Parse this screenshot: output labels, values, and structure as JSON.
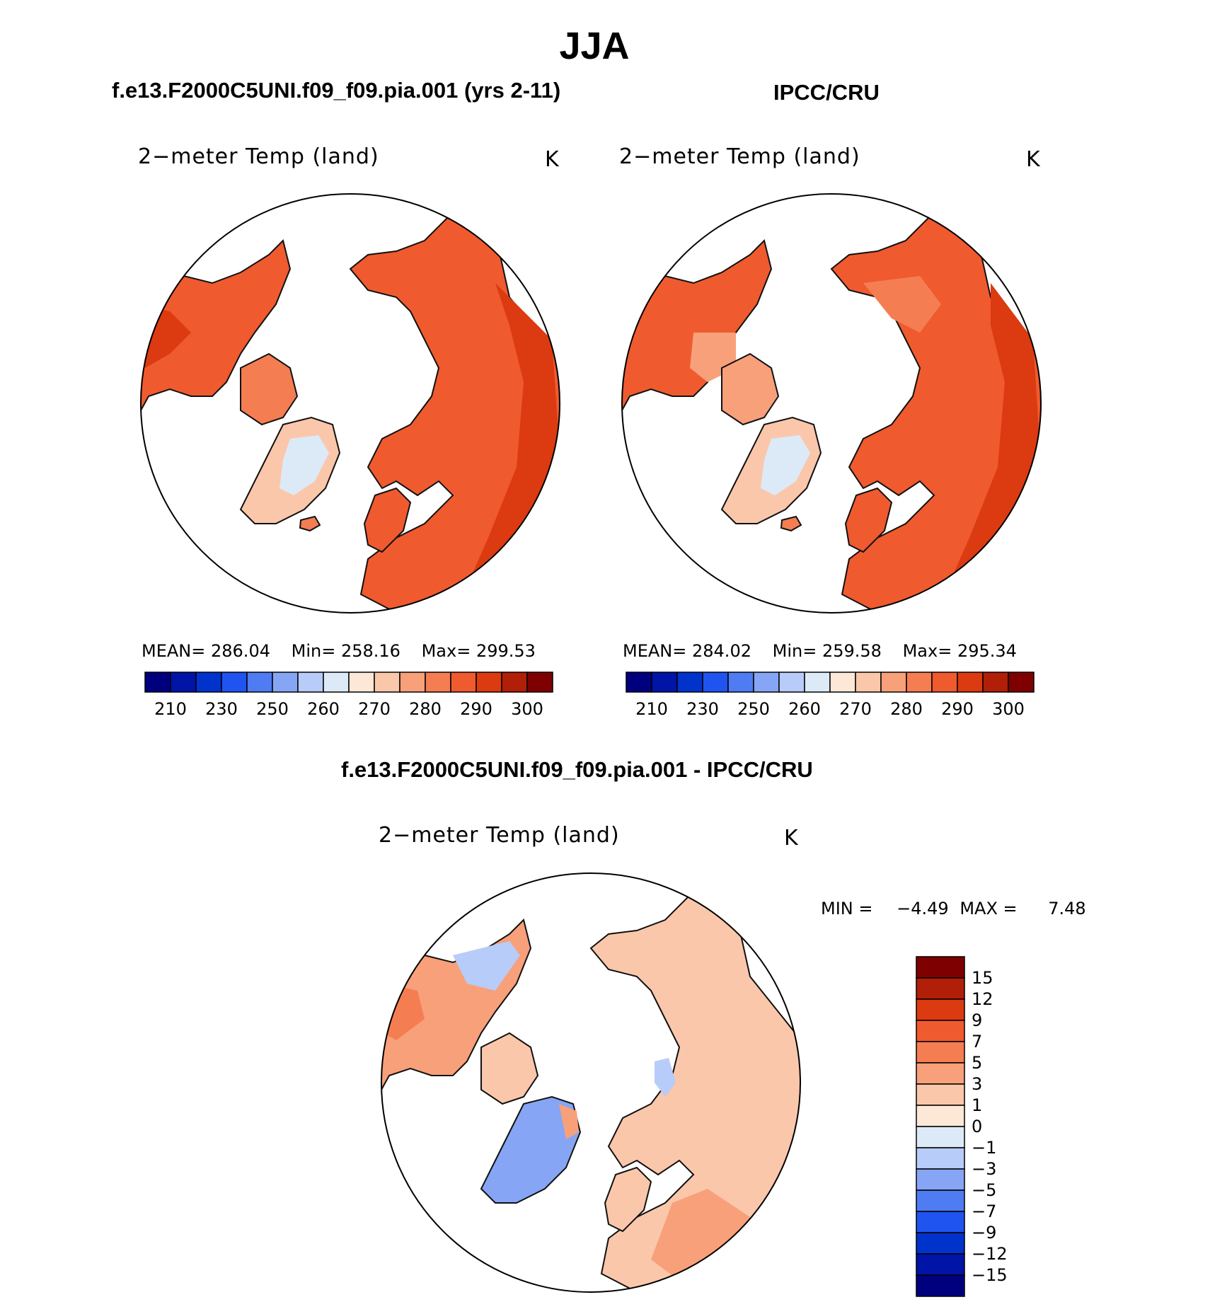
{
  "title": "JJA",
  "panels": {
    "model": {
      "header": "f.e13.F2000C5UNI.f09_f09.pia.001 (yrs 2-11)",
      "variable": "2−meter Temp (land)",
      "units": "K",
      "stats": {
        "mean_label": "MEAN=",
        "mean": "286.04",
        "min_label": "Min=",
        "min": "258.16",
        "max_label": "Max=",
        "max": "299.53"
      }
    },
    "obs": {
      "header": "IPCC/CRU",
      "variable": "2−meter Temp (land)",
      "units": "K",
      "stats": {
        "mean_label": "MEAN=",
        "mean": "284.02",
        "min_label": "Min=",
        "min": "259.58",
        "max_label": "Max=",
        "max": "295.34"
      }
    },
    "diff": {
      "header": "f.e13.F2000C5UNI.f09_f09.pia.001 - IPCC/CRU",
      "variable": "2−meter Temp (land)",
      "units": "K",
      "stats": {
        "min_label": "MIN =",
        "min": "−4.49",
        "max_label": "MAX =",
        "max": "7.48"
      }
    }
  },
  "colorbar_abs": {
    "colors": [
      "#00007f",
      "#0014a8",
      "#0033cc",
      "#1f54f0",
      "#4f7cf2",
      "#86a6f5",
      "#b7ccf8",
      "#dceaf8",
      "#fde8d8",
      "#fbc7aa",
      "#f8a07a",
      "#f57d52",
      "#f05a2f",
      "#dc3a10",
      "#b11f08",
      "#7f0000"
    ],
    "labels": [
      "210",
      "230",
      "250",
      "260",
      "270",
      "280",
      "290",
      "300"
    ]
  },
  "colorbar_diff": {
    "colors": [
      "#7f0000",
      "#b11f08",
      "#dc3a10",
      "#f05a2f",
      "#f57d52",
      "#f8a07a",
      "#fbc7aa",
      "#fde8d8",
      "#dceaf8",
      "#b7ccf8",
      "#86a6f5",
      "#4f7cf2",
      "#1f54f0",
      "#0033cc",
      "#0014a8",
      "#00007f"
    ],
    "labels": [
      "15",
      "12",
      "9",
      "7",
      "5",
      "3",
      "1",
      "0",
      "−1",
      "−3",
      "−5",
      "−7",
      "−9",
      "−12",
      "−15"
    ]
  }
}
